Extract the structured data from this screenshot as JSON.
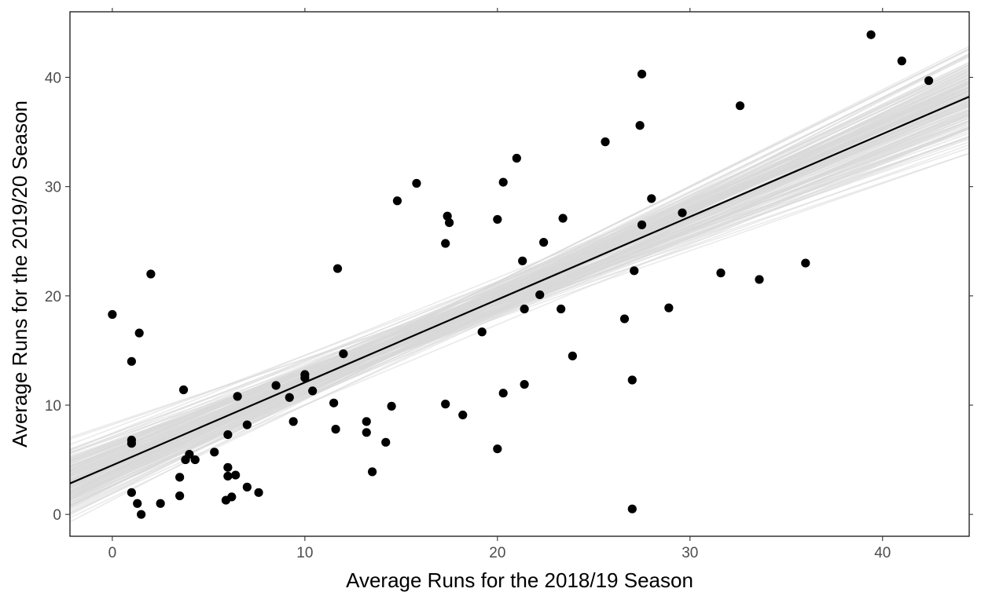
{
  "chart_data": {
    "type": "scatter",
    "title": "",
    "xlabel": "Average Runs for the 2018/19 Season",
    "ylabel": "Average Runs for the 2019/20 Season",
    "xlim": [
      -2.2,
      44.5
    ],
    "ylim": [
      -2,
      46
    ],
    "x_ticks": [
      0,
      10,
      20,
      30,
      40
    ],
    "y_ticks": [
      0,
      10,
      20,
      30,
      40
    ],
    "grid": false,
    "legend": "none",
    "colors": {
      "points": "#000000",
      "fit_line": "#000000",
      "posterior_lines": "#d9d9d9",
      "frame": "#000000"
    },
    "fit_line": {
      "intercept": 4.5,
      "slope": 0.758
    },
    "posterior_band": {
      "count": 160,
      "center_x": 17,
      "intercept_at_center": {
        "mean": 17.4,
        "sd": 0.85
      },
      "slope": {
        "mean": 0.758,
        "sd": 0.075
      }
    },
    "points": [
      {
        "x": 0,
        "y": 18.3
      },
      {
        "x": 1,
        "y": 14.0
      },
      {
        "x": 1.4,
        "y": 16.6
      },
      {
        "x": 2.0,
        "y": 22.0
      },
      {
        "x": 1,
        "y": 6.8
      },
      {
        "x": 1,
        "y": 6.5
      },
      {
        "x": 1,
        "y": 2.0
      },
      {
        "x": 1.3,
        "y": 1.0
      },
      {
        "x": 1.5,
        "y": 0.0
      },
      {
        "x": 2.5,
        "y": 1.0
      },
      {
        "x": 3.5,
        "y": 1.7
      },
      {
        "x": 3.5,
        "y": 3.4
      },
      {
        "x": 3.7,
        "y": 11.4
      },
      {
        "x": 3.8,
        "y": 5.0
      },
      {
        "x": 4.0,
        "y": 5.5
      },
      {
        "x": 4.3,
        "y": 5.0
      },
      {
        "x": 5.3,
        "y": 5.7
      },
      {
        "x": 5.9,
        "y": 1.3
      },
      {
        "x": 6.0,
        "y": 4.3
      },
      {
        "x": 6.0,
        "y": 3.5
      },
      {
        "x": 6.0,
        "y": 7.3
      },
      {
        "x": 6.2,
        "y": 1.6
      },
      {
        "x": 6.4,
        "y": 3.6
      },
      {
        "x": 6.5,
        "y": 10.8
      },
      {
        "x": 7.0,
        "y": 8.2
      },
      {
        "x": 7.0,
        "y": 2.5
      },
      {
        "x": 7.6,
        "y": 2.0
      },
      {
        "x": 8.5,
        "y": 11.8
      },
      {
        "x": 9.2,
        "y": 10.7
      },
      {
        "x": 9.4,
        "y": 8.5
      },
      {
        "x": 10.0,
        "y": 12.8
      },
      {
        "x": 10.0,
        "y": 12.5
      },
      {
        "x": 10.4,
        "y": 11.3
      },
      {
        "x": 11.5,
        "y": 10.2
      },
      {
        "x": 11.6,
        "y": 7.8
      },
      {
        "x": 11.7,
        "y": 22.5
      },
      {
        "x": 12.0,
        "y": 14.7
      },
      {
        "x": 13.2,
        "y": 8.5
      },
      {
        "x": 13.2,
        "y": 7.5
      },
      {
        "x": 13.5,
        "y": 3.9
      },
      {
        "x": 14.2,
        "y": 6.6
      },
      {
        "x": 14.5,
        "y": 9.9
      },
      {
        "x": 14.8,
        "y": 28.7
      },
      {
        "x": 15.8,
        "y": 30.3
      },
      {
        "x": 17.3,
        "y": 24.8
      },
      {
        "x": 17.4,
        "y": 27.3
      },
      {
        "x": 17.5,
        "y": 26.7
      },
      {
        "x": 17.3,
        "y": 10.1
      },
      {
        "x": 18.2,
        "y": 9.1
      },
      {
        "x": 19.2,
        "y": 16.7
      },
      {
        "x": 20.0,
        "y": 27.0
      },
      {
        "x": 20.0,
        "y": 6.0
      },
      {
        "x": 20.3,
        "y": 11.1
      },
      {
        "x": 20.3,
        "y": 30.4
      },
      {
        "x": 21.0,
        "y": 32.6
      },
      {
        "x": 21.3,
        "y": 23.2
      },
      {
        "x": 21.4,
        "y": 11.9
      },
      {
        "x": 21.4,
        "y": 18.8
      },
      {
        "x": 22.2,
        "y": 20.1
      },
      {
        "x": 22.4,
        "y": 24.9
      },
      {
        "x": 23.3,
        "y": 18.8
      },
      {
        "x": 23.4,
        "y": 27.1
      },
      {
        "x": 23.9,
        "y": 14.5
      },
      {
        "x": 25.6,
        "y": 34.1
      },
      {
        "x": 26.6,
        "y": 17.9
      },
      {
        "x": 27.0,
        "y": 12.3
      },
      {
        "x": 27.0,
        "y": 0.5
      },
      {
        "x": 27.1,
        "y": 22.3
      },
      {
        "x": 27.4,
        "y": 35.6
      },
      {
        "x": 27.5,
        "y": 40.3
      },
      {
        "x": 27.5,
        "y": 26.5
      },
      {
        "x": 28.0,
        "y": 28.9
      },
      {
        "x": 28.9,
        "y": 18.9
      },
      {
        "x": 29.6,
        "y": 27.6
      },
      {
        "x": 31.6,
        "y": 22.1
      },
      {
        "x": 32.6,
        "y": 37.4
      },
      {
        "x": 33.6,
        "y": 21.5
      },
      {
        "x": 36.0,
        "y": 23.0
      },
      {
        "x": 39.4,
        "y": 43.9
      },
      {
        "x": 41.0,
        "y": 41.5
      },
      {
        "x": 42.4,
        "y": 39.7
      }
    ]
  }
}
